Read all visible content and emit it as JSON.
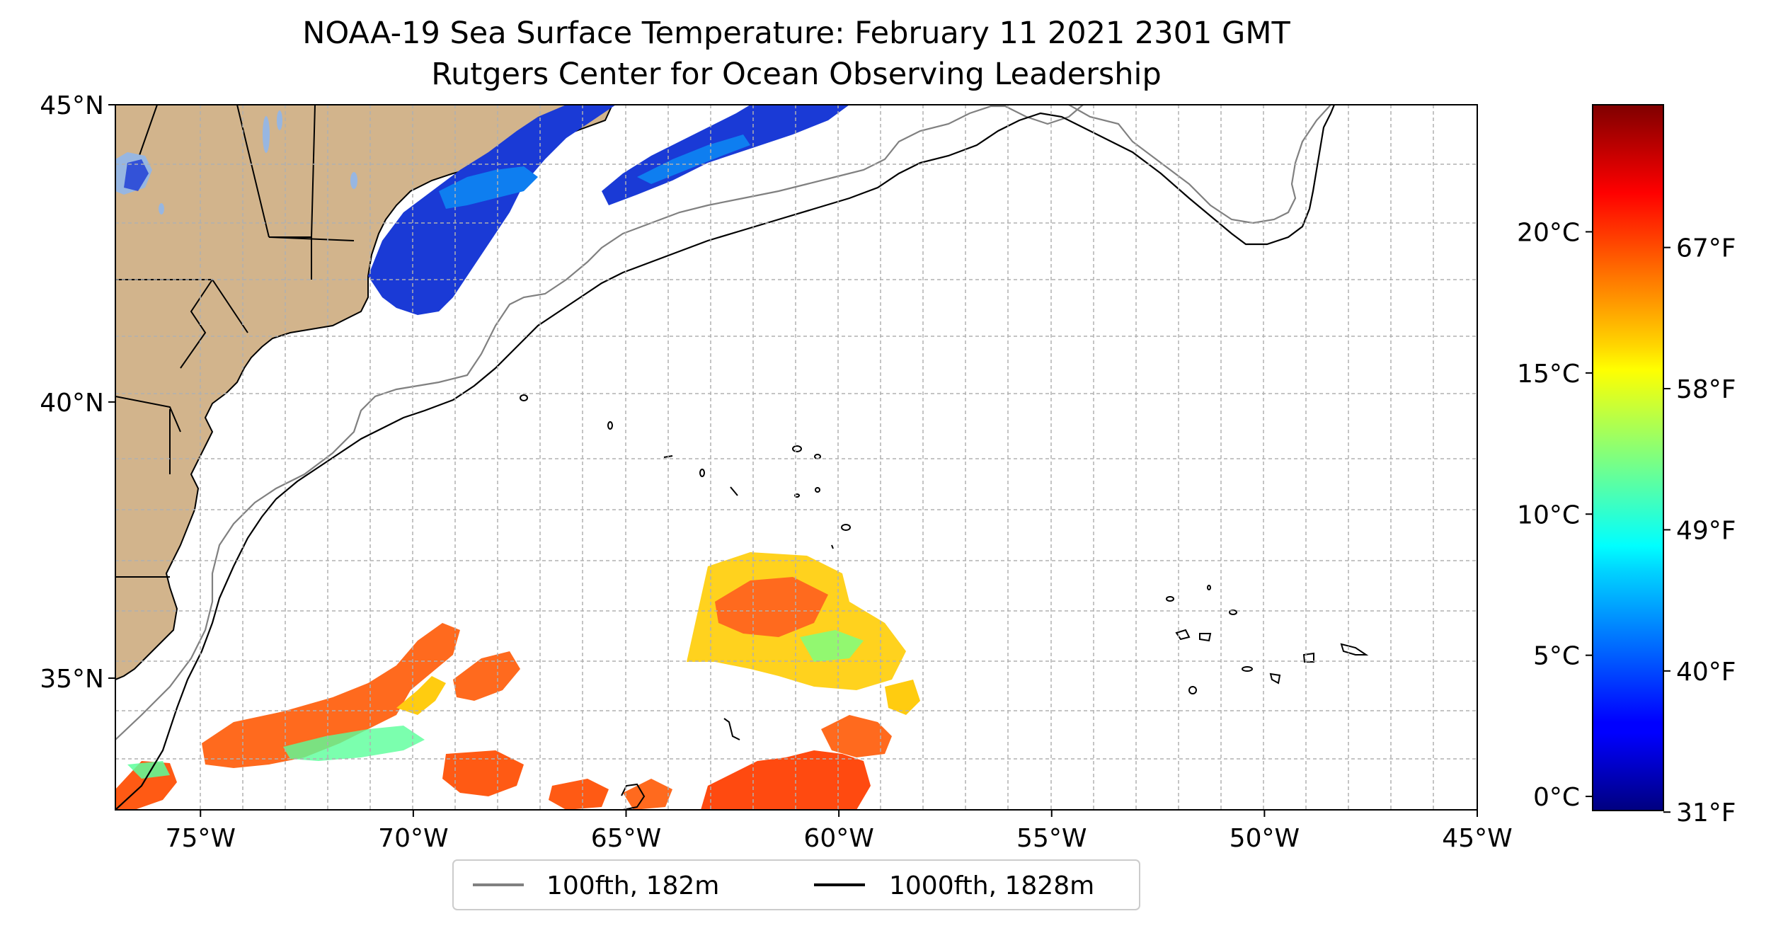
{
  "title_line1": "NOAA-19 Sea Surface Temperature: February 11 2021 2301 GMT",
  "title_line2": "Rutgers Center for Ocean Observing Leadership",
  "map": {
    "lon_range": [
      -77,
      -45
    ],
    "lat_range": [
      32.5,
      45
    ],
    "x_tick_labels": [
      "75°W",
      "70°W",
      "65°W",
      "60°W",
      "55°W",
      "50°W",
      "45°W"
    ],
    "x_tick_values": [
      -75,
      -70,
      -65,
      -60,
      -55,
      -50,
      -45
    ],
    "y_tick_labels": [
      "35°N",
      "40°N",
      "45°N"
    ],
    "y_tick_values": [
      35,
      40,
      45
    ],
    "gridlines": true,
    "land_color": "#d2b48c",
    "lake_color": "#97b6e1"
  },
  "legend": {
    "placement": "bottom-center",
    "items": [
      {
        "label": "100fth, 182m",
        "color": "#808080"
      },
      {
        "label": "1000fth, 1828m",
        "color": "#000000"
      }
    ]
  },
  "colorbar": {
    "colormap": "jet",
    "celsius_labels": [
      "0°C",
      "5°C",
      "10°C",
      "15°C",
      "20°C"
    ],
    "celsius_values": [
      0,
      5,
      10,
      15,
      20
    ],
    "fahrenheit_labels": [
      "31°F",
      "40°F",
      "49°F",
      "58°F",
      "67°F"
    ],
    "fahrenheit_values": [
      31,
      40,
      49,
      58,
      67
    ],
    "range_c": [
      -0.5,
      24.5
    ]
  }
}
